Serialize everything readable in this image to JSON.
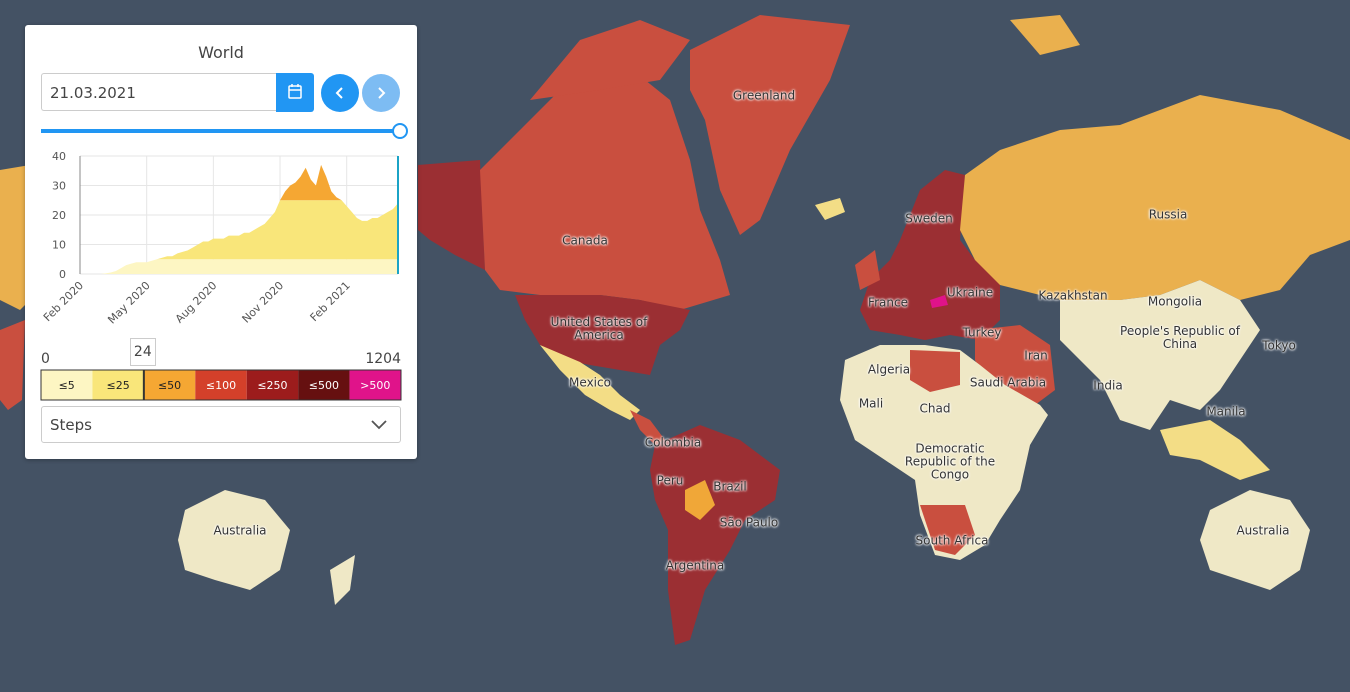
{
  "panel": {
    "title": "World",
    "date": "21.03.2021",
    "mode": "Steps",
    "mini_chart": {
      "type": "area",
      "values": [
        0,
        0,
        0,
        0,
        0,
        0.2,
        0.5,
        1,
        2,
        3,
        3.5,
        4,
        4,
        4,
        4.5,
        5,
        5.5,
        6,
        6,
        7,
        7.5,
        8,
        9,
        10,
        11,
        11,
        12,
        12,
        12,
        13,
        13,
        13,
        14,
        14,
        15,
        16,
        17,
        19,
        21,
        25,
        28,
        30,
        31,
        33,
        36,
        32,
        30,
        37,
        33,
        28,
        26,
        25,
        23,
        21,
        19,
        18,
        18,
        19,
        19,
        20,
        21,
        22,
        24
      ],
      "xlim": [
        0,
        62
      ],
      "ylim": [
        0,
        40
      ],
      "yticks": [
        0,
        10,
        20,
        30,
        40
      ],
      "xticks": [
        {
          "value": 0,
          "label": "Feb 2020"
        },
        {
          "value": 13,
          "label": "May 2020"
        },
        {
          "value": 26,
          "label": "Aug 2020"
        },
        {
          "value": 39,
          "label": "Nov 2020"
        },
        {
          "value": 52,
          "label": "Feb 2021"
        }
      ]
    },
    "legend": {
      "min": 0,
      "max": 1204,
      "current": 24,
      "steps": [
        {
          "value": 5,
          "label": "≤5",
          "color": "#fdf6c3"
        },
        {
          "value": 25,
          "label": "≤25",
          "color": "#f9e67a"
        },
        {
          "value": 50,
          "label": "≤50",
          "color": "#f5a733"
        },
        {
          "value": 100,
          "label": "≤100",
          "color": "#d4402a"
        },
        {
          "value": 250,
          "label": "≤250",
          "color": "#9c1c1c"
        },
        {
          "value": 500,
          "label": "≤500",
          "color": "#661010"
        },
        {
          "value": 500,
          "label": ">500",
          "color": "#e0138a"
        }
      ]
    }
  },
  "map": {
    "labels": [
      "Greenland",
      "Canada",
      "United States of America",
      "Mexico",
      "Colombia",
      "Peru",
      "Brazil",
      "São Paulo",
      "Argentina",
      "Sweden",
      "France",
      "Ukraine",
      "Turkey",
      "Iran",
      "Saudi Arabia",
      "Algeria",
      "Mali",
      "Chad",
      "Democratic Republic of the Congo",
      "South Africa",
      "Russia",
      "Kazakhstan",
      "Mongolia",
      "People's Republic of China",
      "India",
      "Tokyo",
      "Manila",
      "Australia",
      "Australia"
    ]
  }
}
